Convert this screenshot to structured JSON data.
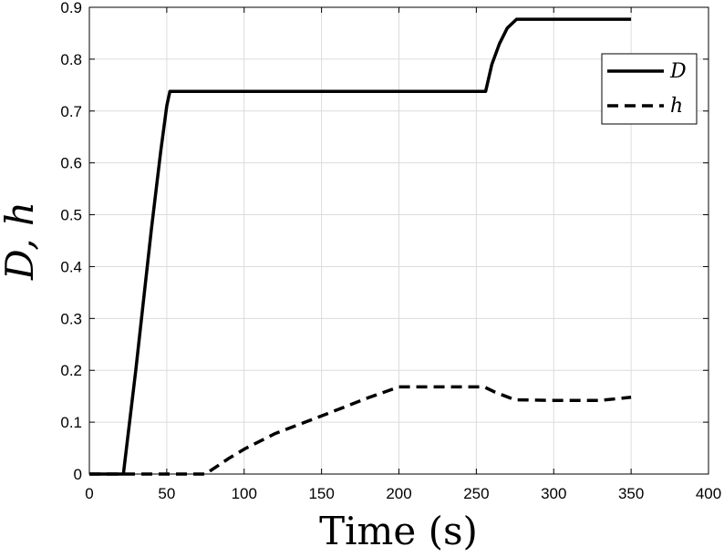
{
  "chart_data": {
    "type": "line",
    "title": "",
    "xlabel": "Time (s)",
    "ylabel": "D, h",
    "xlim": [
      0,
      400
    ],
    "ylim": [
      0,
      0.9
    ],
    "xticks": [
      0,
      50,
      100,
      150,
      200,
      250,
      300,
      350,
      400
    ],
    "yticks": [
      0,
      0.1,
      0.2,
      0.3,
      0.4,
      0.5,
      0.6,
      0.7,
      0.8,
      0.9
    ],
    "xtick_labels": [
      "0",
      "50",
      "100",
      "150",
      "200",
      "250",
      "300",
      "350",
      "400"
    ],
    "ytick_labels": [
      "0",
      "0.1",
      "0.2",
      "0.3",
      "0.4",
      "0.5",
      "0.6",
      "0.7",
      "0.8",
      "0.9"
    ],
    "grid": true,
    "legend_position": "top-right",
    "series": [
      {
        "name": "D",
        "style": "solid",
        "color": "#000000",
        "x": [
          0,
          22,
          30,
          40,
          46,
          50,
          52,
          100,
          150,
          200,
          256,
          260,
          265,
          270,
          276,
          300,
          350
        ],
        "y": [
          0,
          0,
          0.2,
          0.47,
          0.62,
          0.71,
          0.738,
          0.738,
          0.738,
          0.738,
          0.738,
          0.79,
          0.83,
          0.86,
          0.877,
          0.877,
          0.877
        ]
      },
      {
        "name": "h",
        "style": "dashed",
        "color": "#000000",
        "x": [
          0,
          75,
          80,
          90,
          100,
          120,
          150,
          180,
          200,
          220,
          255,
          262,
          275,
          300,
          330,
          350
        ],
        "y": [
          0,
          0,
          0.01,
          0.03,
          0.048,
          0.078,
          0.112,
          0.147,
          0.168,
          0.168,
          0.168,
          0.158,
          0.143,
          0.142,
          0.142,
          0.148
        ]
      }
    ]
  }
}
